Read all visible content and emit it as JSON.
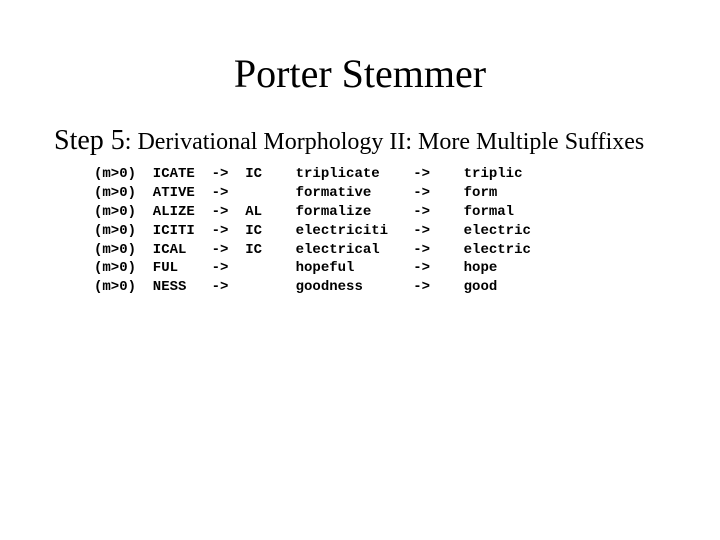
{
  "title": "Porter Stemmer",
  "subtitle": {
    "step": "Step 5",
    "desc": ": Derivational Morphology II: More Multiple Suffixes"
  },
  "rules": {
    "columns": {
      "cond_w": 7,
      "from_w": 7,
      "arrow_w": 4,
      "to_w": 6,
      "ex_in_w": 14,
      "arrow2_w": 6,
      "ex_out_w": 10
    },
    "rows": [
      {
        "cond": "(m>0)",
        "from": "ICATE",
        "to": "IC",
        "ex_in": "triplicate",
        "ex_out": "triplic"
      },
      {
        "cond": "(m>0)",
        "from": "ATIVE",
        "to": "",
        "ex_in": "formative",
        "ex_out": "form"
      },
      {
        "cond": "(m>0)",
        "from": "ALIZE",
        "to": "AL",
        "ex_in": "formalize",
        "ex_out": "formal"
      },
      {
        "cond": "(m>0)",
        "from": "ICITI",
        "to": "IC",
        "ex_in": "electriciti",
        "ex_out": "electric"
      },
      {
        "cond": "(m>0)",
        "from": "ICAL",
        "to": "IC",
        "ex_in": "electrical",
        "ex_out": "electric"
      },
      {
        "cond": "(m>0)",
        "from": "FUL",
        "to": "",
        "ex_in": "hopeful",
        "ex_out": "hope"
      },
      {
        "cond": "(m>0)",
        "from": "NESS",
        "to": "",
        "ex_in": "goodness",
        "ex_out": "good"
      }
    ],
    "arrow": "->"
  }
}
